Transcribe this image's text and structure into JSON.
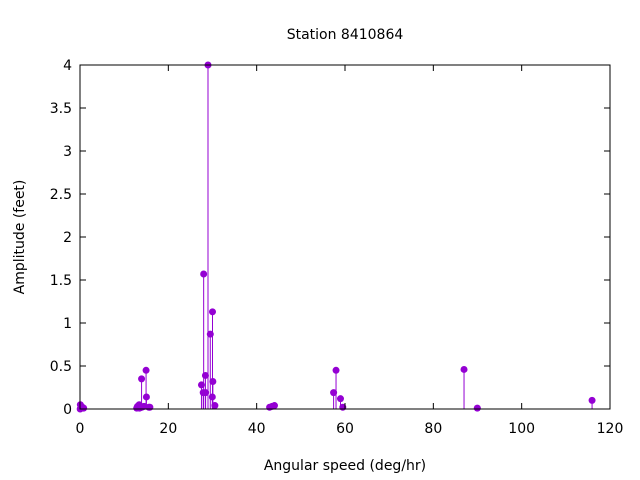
{
  "chart_data": {
    "type": "scatter",
    "style": "impulses-with-points",
    "title": "Station 8410864",
    "xlabel": "Angular speed (deg/hr)",
    "ylabel": "Amplitude (feet)",
    "xlim": [
      0,
      120
    ],
    "ylim": [
      0,
      4
    ],
    "xticks": [
      "0",
      "20",
      "40",
      "60",
      "80",
      "100",
      "120"
    ],
    "yticks": [
      "0",
      "0.5",
      "1",
      "1.5",
      "2",
      "2.5",
      "3",
      "3.5",
      "4"
    ],
    "grid": false,
    "legend": "none",
    "color": "#9400d3",
    "series": [
      {
        "x": [
          0.04,
          0.08,
          0.54,
          0.82,
          12.85,
          13.0,
          13.4,
          13.47,
          13.94,
          14.0,
          14.5,
          14.96,
          15.04,
          15.59,
          15.82,
          27.5,
          27.9,
          28.0,
          28.4,
          28.44,
          28.98,
          29.5,
          29.96,
          30.0,
          30.08,
          30.54,
          42.93,
          43.48,
          44.03,
          57.42,
          57.97,
          58.98,
          59.5,
          86.95,
          89.96,
          115.94
        ],
        "y": [
          0.0,
          0.05,
          0.02,
          0.01,
          0.01,
          0.03,
          0.05,
          0.01,
          0.35,
          0.02,
          0.03,
          0.45,
          0.14,
          0.02,
          0.02,
          0.28,
          0.19,
          1.57,
          0.39,
          0.19,
          4.0,
          0.87,
          0.14,
          1.13,
          0.32,
          0.04,
          0.02,
          0.03,
          0.04,
          0.19,
          0.45,
          0.12,
          0.02,
          0.46,
          0.01,
          0.1
        ]
      }
    ]
  }
}
